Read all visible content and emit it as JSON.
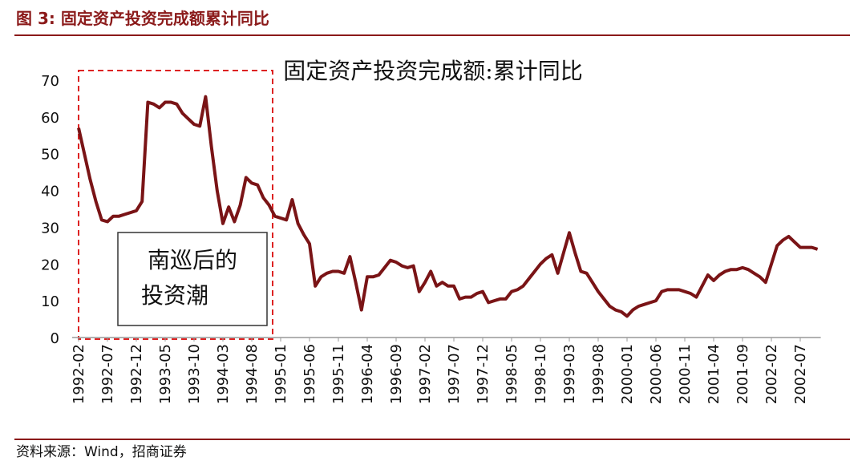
{
  "header": "图 3: 固定资产投资完成额累计同比",
  "source": "资料来源：Wind，招商证券",
  "chart_data": {
    "type": "line",
    "title": "固定资产投资完成额:累计同比",
    "annotation": [
      "南巡后的",
      "投资潮"
    ],
    "color": "#7a1416",
    "categories": [
      "1992-02",
      null,
      null,
      null,
      null,
      "1992-07",
      null,
      null,
      null,
      null,
      "1992-12",
      null,
      null,
      null,
      null,
      "1993-05",
      null,
      null,
      null,
      null,
      "1993-10",
      null,
      null,
      null,
      null,
      "1994-03",
      null,
      null,
      null,
      null,
      "1994-08",
      null,
      null,
      null,
      null,
      "1995-01",
      null,
      null,
      null,
      null,
      "1995-06",
      null,
      null,
      null,
      null,
      "1995-11",
      null,
      null,
      null,
      null,
      "1996-04",
      null,
      null,
      null,
      null,
      "1996-09",
      null,
      null,
      null,
      null,
      "1997-02",
      null,
      null,
      null,
      null,
      "1997-07",
      null,
      null,
      null,
      null,
      "1997-12",
      null,
      null,
      null,
      null,
      "1998-05",
      null,
      null,
      null,
      null,
      "1998-10",
      null,
      null,
      null,
      null,
      "1999-03",
      null,
      null,
      null,
      null,
      "1999-08",
      null,
      null,
      null,
      null,
      "2000-01",
      null,
      null,
      null,
      null,
      "2000-06",
      null,
      null,
      null,
      null,
      "2000-11",
      null,
      null,
      null,
      null,
      "2001-04",
      null,
      null,
      null,
      null,
      "2001-09",
      null,
      null,
      null,
      null,
      "2002-02",
      null,
      null,
      null,
      null,
      "2002-07",
      null,
      null,
      null
    ],
    "values": [
      57,
      50,
      43,
      37,
      32,
      31.5,
      33,
      33,
      33.5,
      34,
      34.5,
      37,
      64,
      63.5,
      62.5,
      64,
      64,
      63.5,
      61,
      59.5,
      58,
      57.5,
      65.5,
      52,
      40,
      31,
      35.5,
      31.5,
      36,
      43.5,
      42,
      41.5,
      38,
      36,
      33,
      32.5,
      32,
      37.5,
      31,
      28,
      25.5,
      14,
      16.5,
      17.5,
      18,
      18,
      17.5,
      22,
      15,
      7.5,
      16.5,
      16.5,
      17,
      19,
      21,
      20.5,
      19.5,
      19,
      19.5,
      12.5,
      15,
      18,
      14,
      15,
      14,
      14,
      10.5,
      11,
      11,
      12,
      12.5,
      9.5,
      10,
      10.5,
      10.5,
      12.5,
      13,
      14,
      16,
      18,
      20,
      21.5,
      22.5,
      17.5,
      23,
      28.5,
      23,
      18,
      17.5,
      15,
      12.5,
      10.5,
      8.5,
      7.5,
      7,
      5.8,
      7.5,
      8.5,
      9,
      9.5,
      10,
      12.5,
      13,
      13,
      13,
      12.5,
      12,
      11,
      14,
      17,
      15.5,
      17,
      18,
      18.5,
      18.5,
      19,
      18.5,
      17.5,
      16.5,
      15,
      20,
      25,
      26.5,
      27.5,
      26,
      24.5,
      24.5,
      24.5,
      24
    ],
    "ylim": [
      0,
      70
    ],
    "yticks": [
      0,
      10,
      20,
      30,
      40,
      50,
      60,
      70
    ],
    "grid": false
  }
}
